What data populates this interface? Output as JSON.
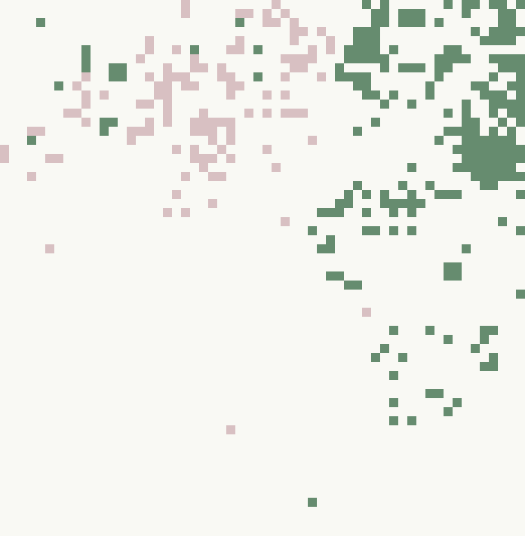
{
  "colors": {
    "background": "#f9f9f4",
    "green": "#668c6f",
    "pink": "#d8c0c2"
  },
  "grid": {
    "cols": 58,
    "rows": 59
  },
  "cells": {
    "green": [
      [
        4,
        2
      ],
      [
        26,
        2
      ],
      [
        9,
        5
      ],
      [
        21,
        5
      ],
      [
        28,
        5
      ],
      [
        9,
        6
      ],
      [
        9,
        7
      ],
      [
        12,
        7
      ],
      [
        13,
        7
      ],
      [
        12,
        8
      ],
      [
        13,
        8
      ],
      [
        28,
        8
      ],
      [
        6,
        9
      ],
      [
        11,
        13
      ],
      [
        12,
        13
      ],
      [
        11,
        14
      ],
      [
        3,
        15
      ],
      [
        40,
        0
      ],
      [
        42,
        0
      ],
      [
        49,
        0
      ],
      [
        51,
        0
      ],
      [
        52,
        0
      ],
      [
        54,
        0
      ],
      [
        55,
        0
      ],
      [
        57,
        0
      ],
      [
        41,
        1
      ],
      [
        42,
        1
      ],
      [
        44,
        1
      ],
      [
        45,
        1
      ],
      [
        46,
        1
      ],
      [
        51,
        1
      ],
      [
        55,
        1
      ],
      [
        56,
        1
      ],
      [
        41,
        2
      ],
      [
        42,
        2
      ],
      [
        44,
        2
      ],
      [
        45,
        2
      ],
      [
        46,
        2
      ],
      [
        48,
        2
      ],
      [
        55,
        2
      ],
      [
        56,
        2
      ],
      [
        39,
        3
      ],
      [
        40,
        3
      ],
      [
        41,
        3
      ],
      [
        52,
        3
      ],
      [
        54,
        3
      ],
      [
        55,
        3
      ],
      [
        56,
        3
      ],
      [
        57,
        3
      ],
      [
        39,
        4
      ],
      [
        40,
        4
      ],
      [
        41,
        4
      ],
      [
        53,
        4
      ],
      [
        54,
        4
      ],
      [
        55,
        4
      ],
      [
        56,
        4
      ],
      [
        38,
        5
      ],
      [
        39,
        5
      ],
      [
        40,
        5
      ],
      [
        41,
        5
      ],
      [
        43,
        5
      ],
      [
        49,
        5
      ],
      [
        50,
        5
      ],
      [
        38,
        6
      ],
      [
        39,
        6
      ],
      [
        40,
        6
      ],
      [
        41,
        6
      ],
      [
        42,
        6
      ],
      [
        48,
        6
      ],
      [
        49,
        6
      ],
      [
        50,
        6
      ],
      [
        51,
        6
      ],
      [
        54,
        6
      ],
      [
        55,
        6
      ],
      [
        56,
        6
      ],
      [
        57,
        6
      ],
      [
        37,
        7
      ],
      [
        42,
        7
      ],
      [
        44,
        7
      ],
      [
        45,
        7
      ],
      [
        46,
        7
      ],
      [
        48,
        7
      ],
      [
        49,
        7
      ],
      [
        55,
        7
      ],
      [
        56,
        7
      ],
      [
        57,
        7
      ],
      [
        37,
        8
      ],
      [
        38,
        8
      ],
      [
        39,
        8
      ],
      [
        40,
        8
      ],
      [
        48,
        8
      ],
      [
        54,
        8
      ],
      [
        57,
        8
      ],
      [
        39,
        9
      ],
      [
        40,
        9
      ],
      [
        47,
        9
      ],
      [
        52,
        9
      ],
      [
        53,
        9
      ],
      [
        56,
        9
      ],
      [
        57,
        9
      ],
      [
        40,
        10
      ],
      [
        41,
        10
      ],
      [
        43,
        10
      ],
      [
        47,
        10
      ],
      [
        53,
        10
      ],
      [
        54,
        10
      ],
      [
        55,
        10
      ],
      [
        57,
        10
      ],
      [
        42,
        11
      ],
      [
        45,
        11
      ],
      [
        51,
        11
      ],
      [
        54,
        11
      ],
      [
        55,
        11
      ],
      [
        56,
        11
      ],
      [
        57,
        11
      ],
      [
        49,
        12
      ],
      [
        51,
        12
      ],
      [
        54,
        12
      ],
      [
        56,
        12
      ],
      [
        57,
        12
      ],
      [
        41,
        13
      ],
      [
        51,
        13
      ],
      [
        52,
        13
      ],
      [
        55,
        13
      ],
      [
        57,
        13
      ],
      [
        39,
        14
      ],
      [
        49,
        14
      ],
      [
        50,
        14
      ],
      [
        51,
        14
      ],
      [
        52,
        14
      ],
      [
        54,
        14
      ],
      [
        56,
        14
      ],
      [
        48,
        15
      ],
      [
        51,
        15
      ],
      [
        52,
        15
      ],
      [
        53,
        15
      ],
      [
        54,
        15
      ],
      [
        55,
        15
      ],
      [
        56,
        15
      ],
      [
        50,
        16
      ],
      [
        51,
        16
      ],
      [
        52,
        16
      ],
      [
        53,
        16
      ],
      [
        54,
        16
      ],
      [
        55,
        16
      ],
      [
        56,
        16
      ],
      [
        57,
        16
      ],
      [
        51,
        17
      ],
      [
        52,
        17
      ],
      [
        53,
        17
      ],
      [
        54,
        17
      ],
      [
        55,
        17
      ],
      [
        56,
        17
      ],
      [
        57,
        17
      ],
      [
        45,
        18
      ],
      [
        50,
        18
      ],
      [
        51,
        18
      ],
      [
        52,
        18
      ],
      [
        53,
        18
      ],
      [
        54,
        18
      ],
      [
        55,
        18
      ],
      [
        56,
        18
      ],
      [
        52,
        19
      ],
      [
        53,
        19
      ],
      [
        54,
        19
      ],
      [
        55,
        19
      ],
      [
        56,
        19
      ],
      [
        57,
        19
      ],
      [
        39,
        20
      ],
      [
        44,
        20
      ],
      [
        47,
        20
      ],
      [
        53,
        20
      ],
      [
        54,
        20
      ],
      [
        38,
        21
      ],
      [
        40,
        21
      ],
      [
        42,
        21
      ],
      [
        45,
        21
      ],
      [
        48,
        21
      ],
      [
        49,
        21
      ],
      [
        50,
        21
      ],
      [
        57,
        21
      ],
      [
        37,
        22
      ],
      [
        38,
        22
      ],
      [
        42,
        22
      ],
      [
        43,
        22
      ],
      [
        44,
        22
      ],
      [
        45,
        22
      ],
      [
        46,
        22
      ],
      [
        35,
        23
      ],
      [
        36,
        23
      ],
      [
        37,
        23
      ],
      [
        40,
        23
      ],
      [
        43,
        23
      ],
      [
        45,
        23
      ],
      [
        55,
        24
      ],
      [
        34,
        25
      ],
      [
        40,
        25
      ],
      [
        41,
        25
      ],
      [
        43,
        25
      ],
      [
        45,
        25
      ],
      [
        57,
        25
      ],
      [
        36,
        26
      ],
      [
        35,
        27
      ],
      [
        36,
        27
      ],
      [
        51,
        27
      ],
      [
        49,
        29
      ],
      [
        50,
        29
      ],
      [
        36,
        30
      ],
      [
        37,
        30
      ],
      [
        49,
        30
      ],
      [
        50,
        30
      ],
      [
        38,
        31
      ],
      [
        39,
        31
      ],
      [
        57,
        32
      ],
      [
        43,
        36
      ],
      [
        47,
        36
      ],
      [
        53,
        36
      ],
      [
        54,
        36
      ],
      [
        49,
        37
      ],
      [
        53,
        37
      ],
      [
        42,
        38
      ],
      [
        52,
        38
      ],
      [
        41,
        39
      ],
      [
        44,
        39
      ],
      [
        54,
        39
      ],
      [
        53,
        40
      ],
      [
        54,
        40
      ],
      [
        43,
        41
      ],
      [
        47,
        43
      ],
      [
        48,
        43
      ],
      [
        43,
        44
      ],
      [
        50,
        44
      ],
      [
        49,
        45
      ],
      [
        43,
        46
      ],
      [
        45,
        46
      ],
      [
        34,
        55
      ]
    ],
    "pink": [
      [
        20,
        0
      ],
      [
        30,
        0
      ],
      [
        20,
        1
      ],
      [
        26,
        1
      ],
      [
        27,
        1
      ],
      [
        29,
        1
      ],
      [
        31,
        1
      ],
      [
        29,
        2
      ],
      [
        30,
        2
      ],
      [
        32,
        2
      ],
      [
        32,
        3
      ],
      [
        33,
        3
      ],
      [
        35,
        3
      ],
      [
        16,
        4
      ],
      [
        26,
        4
      ],
      [
        32,
        4
      ],
      [
        36,
        4
      ],
      [
        16,
        5
      ],
      [
        19,
        5
      ],
      [
        25,
        5
      ],
      [
        26,
        5
      ],
      [
        34,
        5
      ],
      [
        36,
        5
      ],
      [
        15,
        6
      ],
      [
        21,
        6
      ],
      [
        31,
        6
      ],
      [
        32,
        6
      ],
      [
        33,
        6
      ],
      [
        34,
        6
      ],
      [
        18,
        7
      ],
      [
        21,
        7
      ],
      [
        22,
        7
      ],
      [
        24,
        7
      ],
      [
        32,
        7
      ],
      [
        33,
        7
      ],
      [
        9,
        8
      ],
      [
        16,
        8
      ],
      [
        18,
        8
      ],
      [
        19,
        8
      ],
      [
        20,
        8
      ],
      [
        24,
        8
      ],
      [
        25,
        8
      ],
      [
        31,
        8
      ],
      [
        35,
        8
      ],
      [
        8,
        9
      ],
      [
        17,
        9
      ],
      [
        18,
        9
      ],
      [
        20,
        9
      ],
      [
        21,
        9
      ],
      [
        25,
        9
      ],
      [
        26,
        9
      ],
      [
        9,
        10
      ],
      [
        11,
        10
      ],
      [
        17,
        10
      ],
      [
        18,
        10
      ],
      [
        25,
        10
      ],
      [
        29,
        10
      ],
      [
        31,
        10
      ],
      [
        9,
        11
      ],
      [
        15,
        11
      ],
      [
        16,
        11
      ],
      [
        18,
        11
      ],
      [
        7,
        12
      ],
      [
        8,
        12
      ],
      [
        18,
        12
      ],
      [
        22,
        12
      ],
      [
        27,
        12
      ],
      [
        29,
        12
      ],
      [
        31,
        12
      ],
      [
        32,
        12
      ],
      [
        33,
        12
      ],
      [
        9,
        13
      ],
      [
        16,
        13
      ],
      [
        18,
        13
      ],
      [
        21,
        13
      ],
      [
        22,
        13
      ],
      [
        23,
        13
      ],
      [
        24,
        13
      ],
      [
        25,
        13
      ],
      [
        3,
        14
      ],
      [
        4,
        14
      ],
      [
        14,
        14
      ],
      [
        15,
        14
      ],
      [
        16,
        14
      ],
      [
        21,
        14
      ],
      [
        22,
        14
      ],
      [
        23,
        14
      ],
      [
        25,
        14
      ],
      [
        14,
        15
      ],
      [
        23,
        15
      ],
      [
        25,
        15
      ],
      [
        34,
        15
      ],
      [
        0,
        16
      ],
      [
        19,
        16
      ],
      [
        21,
        16
      ],
      [
        24,
        16
      ],
      [
        29,
        16
      ],
      [
        0,
        17
      ],
      [
        5,
        17
      ],
      [
        6,
        17
      ],
      [
        21,
        17
      ],
      [
        22,
        17
      ],
      [
        23,
        17
      ],
      [
        25,
        17
      ],
      [
        22,
        18
      ],
      [
        30,
        18
      ],
      [
        3,
        19
      ],
      [
        20,
        19
      ],
      [
        23,
        19
      ],
      [
        24,
        19
      ],
      [
        19,
        21
      ],
      [
        23,
        22
      ],
      [
        18,
        23
      ],
      [
        20,
        23
      ],
      [
        31,
        24
      ],
      [
        5,
        27
      ],
      [
        40,
        34
      ],
      [
        25,
        47
      ]
    ]
  }
}
